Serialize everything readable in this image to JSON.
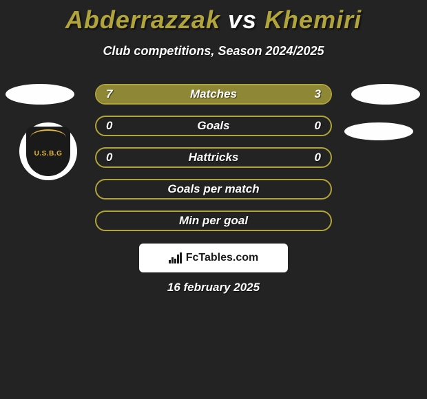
{
  "background_color": "#232323",
  "title": {
    "player1": "Abderrazzak",
    "vs": "vs",
    "player2": "Khemiri",
    "color_player": "#b0a43b",
    "color_vs": "#ffffff",
    "fontsize": 36
  },
  "subtitle": "Club competitions, Season 2024/2025",
  "club_badge_text": "U.S.B.G",
  "bars": {
    "border_color": "#b0a43b",
    "left_fill_color": "#8e8735",
    "right_fill_color": "#8e8735",
    "empty_color": "transparent",
    "label_fontsize": 17,
    "rows": [
      {
        "label": "Matches",
        "left_value": "7",
        "right_value": "3",
        "left_pct": 70,
        "right_pct": 30
      },
      {
        "label": "Goals",
        "left_value": "0",
        "right_value": "0",
        "left_pct": 0,
        "right_pct": 0
      },
      {
        "label": "Hattricks",
        "left_value": "0",
        "right_value": "0",
        "left_pct": 0,
        "right_pct": 0
      },
      {
        "label": "Goals per match",
        "left_value": "",
        "right_value": "",
        "left_pct": 0,
        "right_pct": 0
      },
      {
        "label": "Min per goal",
        "left_value": "",
        "right_value": "",
        "left_pct": 0,
        "right_pct": 0
      }
    ]
  },
  "brand": "FcTables.com",
  "date": "16 february 2025"
}
